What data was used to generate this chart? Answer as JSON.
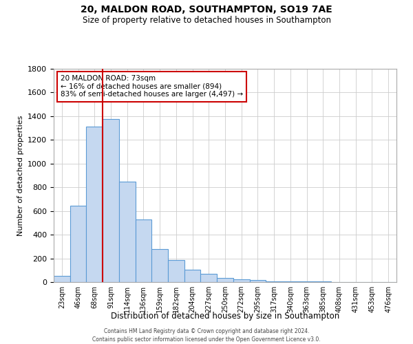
{
  "title": "20, MALDON ROAD, SOUTHAMPTON, SO19 7AE",
  "subtitle": "Size of property relative to detached houses in Southampton",
  "xlabel": "Distribution of detached houses by size in Southampton",
  "ylabel": "Number of detached properties",
  "bar_labels": [
    "23sqm",
    "46sqm",
    "68sqm",
    "91sqm",
    "114sqm",
    "136sqm",
    "159sqm",
    "182sqm",
    "204sqm",
    "227sqm",
    "250sqm",
    "272sqm",
    "295sqm",
    "317sqm",
    "340sqm",
    "363sqm",
    "385sqm",
    "408sqm",
    "431sqm",
    "453sqm",
    "476sqm"
  ],
  "bar_values": [
    55,
    645,
    1310,
    1375,
    850,
    530,
    280,
    185,
    105,
    70,
    35,
    25,
    20,
    8,
    7,
    7,
    3,
    2,
    1,
    0,
    1
  ],
  "bar_color": "#c5d8f0",
  "bar_edge_color": "#5b9bd5",
  "ylim": [
    0,
    1800
  ],
  "yticks": [
    0,
    200,
    400,
    600,
    800,
    1000,
    1200,
    1400,
    1600,
    1800
  ],
  "property_label": "20 MALDON ROAD: 73sqm",
  "annotation_line1": "← 16% of detached houses are smaller (894)",
  "annotation_line2": "83% of semi-detached houses are larger (4,497) →",
  "vline_pos": 2.5,
  "vline_color": "#cc0000",
  "footer_line1": "Contains HM Land Registry data © Crown copyright and database right 2024.",
  "footer_line2": "Contains public sector information licensed under the Open Government Licence v3.0.",
  "bg_color": "#ffffff",
  "grid_color": "#cccccc"
}
